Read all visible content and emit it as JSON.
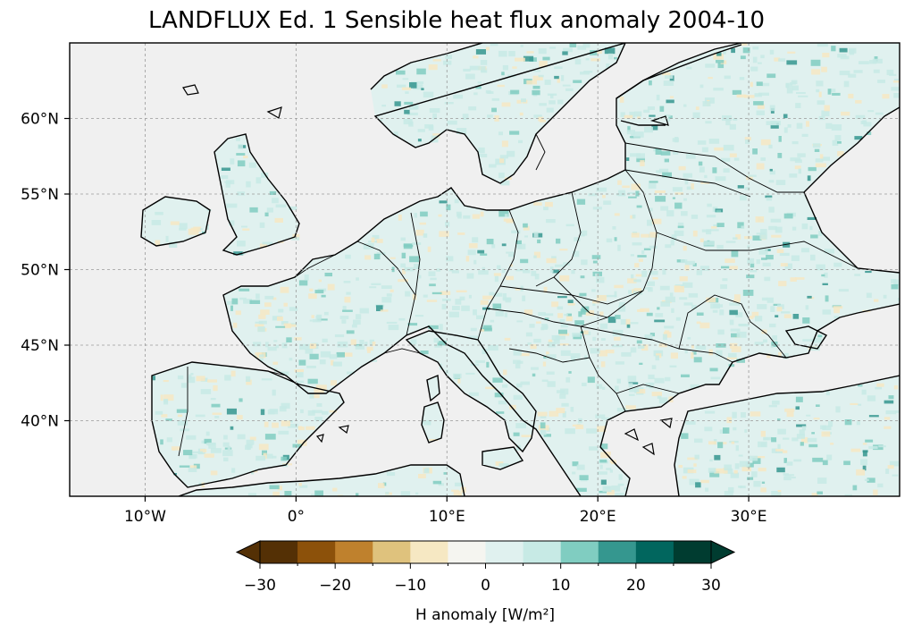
{
  "title": "LANDFLUX Ed. 1 Sensible heat flux anomaly 2004-10",
  "map": {
    "projection": "PlateCarree",
    "lon_range": [
      -15,
      40
    ],
    "lat_range": [
      35,
      65
    ],
    "ocean_color": "#f0f0f0",
    "coastline_color": "#000000",
    "gridlines": true,
    "lat_ticks": [
      {
        "value": 60,
        "label": "60°N"
      },
      {
        "value": 55,
        "label": "55°N"
      },
      {
        "value": 50,
        "label": "50°N"
      },
      {
        "value": 45,
        "label": "45°N"
      },
      {
        "value": 40,
        "label": "40°N"
      }
    ],
    "lon_ticks": [
      {
        "value": -10,
        "label": "10°W"
      },
      {
        "value": 0,
        "label": "0°"
      },
      {
        "value": 10,
        "label": "10°E"
      },
      {
        "value": 20,
        "label": "20°E"
      },
      {
        "value": 30,
        "label": "30°E"
      }
    ]
  },
  "colorbar": {
    "label": "H anomaly [W/m²]",
    "extend": "both",
    "bounds": [
      -30,
      -25,
      -20,
      -15,
      -10,
      -5,
      0,
      5,
      10,
      15,
      20,
      25,
      30
    ],
    "colors": [
      "#543005",
      "#8c510a",
      "#bf812d",
      "#dfc27d",
      "#f6e8c3",
      "#f5f5f0",
      "#e0f1ef",
      "#c7eae5",
      "#80cdc1",
      "#35978f",
      "#01665e",
      "#003c30"
    ],
    "under_color": "#543005",
    "over_color": "#003c30",
    "tick_labels": [
      "−30",
      "−20",
      "−10",
      "0",
      "10",
      "20",
      "30"
    ]
  }
}
